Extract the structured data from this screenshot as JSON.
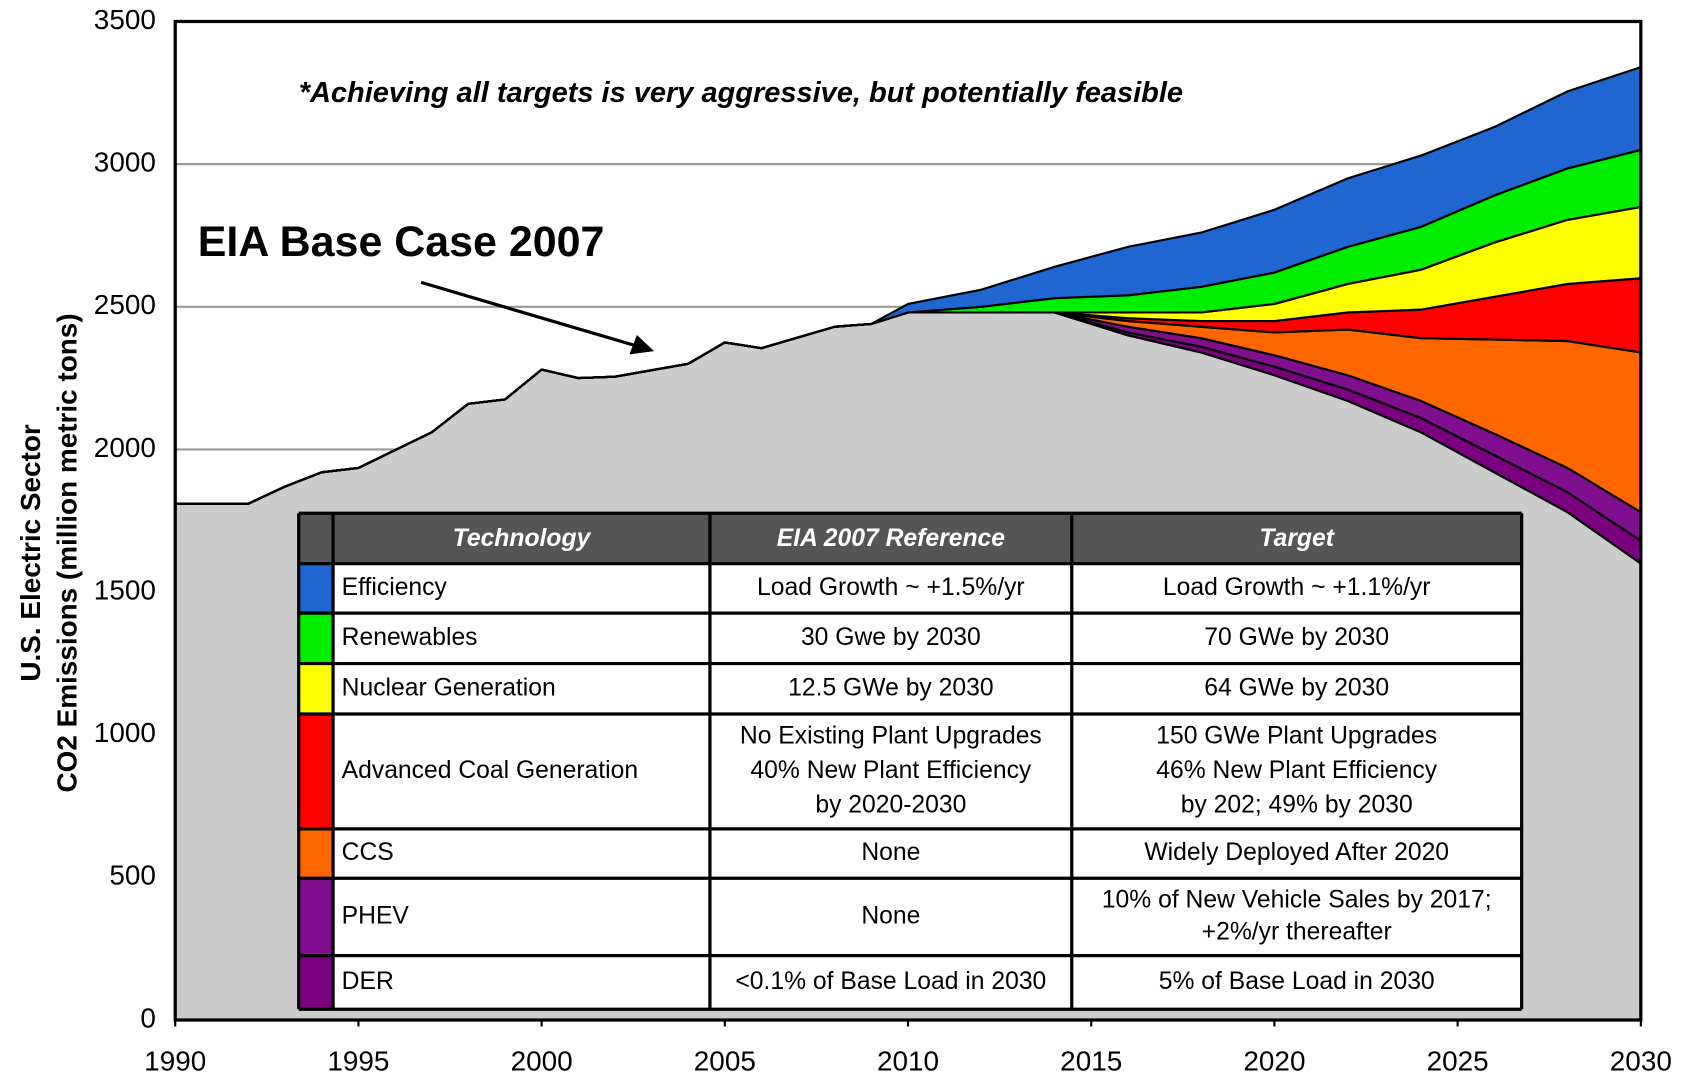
{
  "chart_data": {
    "type": "stacked_area",
    "annotation": "EIA Base Case 2007",
    "note": "*Achieving all targets is very aggressive, but potentially feasible",
    "ylabel": [
      "U.S. Electric Sector",
      "CO2 Emissions (million metric tons)"
    ],
    "xlim": [
      1990,
      2030
    ],
    "xticks": [
      1990,
      1995,
      2000,
      2005,
      2010,
      2015,
      2020,
      2025,
      2030
    ],
    "ylim": [
      0,
      3500
    ],
    "yticks": [
      0,
      500,
      1000,
      1500,
      2000,
      2500,
      3000,
      3500
    ],
    "grid": true,
    "x": [
      1990,
      1992,
      1993,
      1994,
      1995,
      1997,
      1998,
      1999,
      2000,
      2001,
      2002,
      2004,
      2005,
      2006,
      2008,
      2009,
      2010,
      2012,
      2014,
      2016,
      2018,
      2020,
      2022,
      2024,
      2026,
      2028,
      2030
    ],
    "base": {
      "color": "#cccccc",
      "values": [
        1810,
        1810,
        1870,
        1920,
        1935,
        2060,
        2160,
        2175,
        2280,
        2250,
        2255,
        2300,
        2375,
        2355,
        2430,
        2440,
        2480,
        2480,
        2480,
        2400,
        2340,
        2260,
        2170,
        2060,
        1920,
        1780,
        1600
      ]
    },
    "series": [
      {
        "name": "Efficiency",
        "color": "#1f66d1",
        "values": [
          0,
          0,
          0,
          0,
          0,
          0,
          0,
          0,
          0,
          0,
          0,
          0,
          0,
          0,
          0,
          0,
          30,
          60,
          110,
          170,
          190,
          220,
          240,
          250,
          240,
          270,
          290
        ]
      },
      {
        "name": "Renewables",
        "color": "#00ee00",
        "values": [
          0,
          0,
          0,
          0,
          0,
          0,
          0,
          0,
          0,
          0,
          0,
          0,
          0,
          0,
          0,
          0,
          0,
          20,
          50,
          60,
          90,
          110,
          130,
          150,
          165,
          180,
          200
        ]
      },
      {
        "name": "Nuclear Generation",
        "color": "#ffff00",
        "values": [
          0,
          0,
          0,
          0,
          0,
          0,
          0,
          0,
          0,
          0,
          0,
          0,
          0,
          0,
          0,
          0,
          0,
          0,
          0,
          20,
          30,
          60,
          100,
          140,
          190,
          225,
          250
        ]
      },
      {
        "name": "Advanced Coal Generation",
        "color": "#ff0000",
        "values": [
          0,
          0,
          0,
          0,
          0,
          0,
          0,
          0,
          0,
          0,
          0,
          0,
          0,
          0,
          0,
          0,
          0,
          0,
          0,
          10,
          20,
          40,
          60,
          100,
          150,
          200,
          260
        ]
      },
      {
        "name": "CCS",
        "color": "#ff6600",
        "values": [
          0,
          0,
          0,
          0,
          0,
          0,
          0,
          0,
          0,
          0,
          0,
          0,
          0,
          0,
          0,
          0,
          0,
          0,
          0,
          20,
          40,
          80,
          160,
          220,
          330,
          445,
          560
        ]
      },
      {
        "name": "PHEV",
        "color": "#800f90",
        "values": [
          0,
          0,
          0,
          0,
          0,
          0,
          0,
          0,
          0,
          0,
          0,
          0,
          0,
          0,
          0,
          0,
          0,
          0,
          0,
          20,
          30,
          40,
          50,
          60,
          75,
          85,
          100
        ]
      },
      {
        "name": "DER",
        "color": "#7a0080",
        "values": [
          0,
          0,
          0,
          0,
          0,
          0,
          0,
          0,
          0,
          0,
          0,
          0,
          0,
          0,
          0,
          0,
          0,
          0,
          0,
          10,
          20,
          30,
          40,
          50,
          60,
          70,
          80
        ]
      }
    ],
    "table": {
      "columns": [
        "Technology",
        "EIA 2007 Reference",
        "Target"
      ],
      "rows": [
        {
          "reference": [
            "Load Growth ~ +1.5%/yr"
          ],
          "target": [
            "Load Growth ~ +1.1%/yr"
          ]
        },
        {
          "reference": [
            "30 Gwe by 2030"
          ],
          "target": [
            "70 GWe by 2030"
          ]
        },
        {
          "reference": [
            "12.5 GWe by 2030"
          ],
          "target": [
            "64 GWe by 2030"
          ]
        },
        {
          "reference": [
            "No Existing Plant Upgrades",
            "40% New Plant Efficiency",
            "by 2020-2030"
          ],
          "target": [
            "150 GWe Plant Upgrades",
            "46% New Plant Efficiency",
            "by 202; 49% by 2030"
          ]
        },
        {
          "reference": [
            "None"
          ],
          "target": [
            "Widely Deployed After 2020"
          ]
        },
        {
          "reference": [
            "None"
          ],
          "target": [
            "10% of New Vehicle Sales by 2017;",
            "+2%/yr thereafter"
          ]
        },
        {
          "reference": [
            "<0.1% of Base Load in 2030"
          ],
          "target": [
            "5% of Base Load in 2030"
          ]
        }
      ]
    }
  }
}
